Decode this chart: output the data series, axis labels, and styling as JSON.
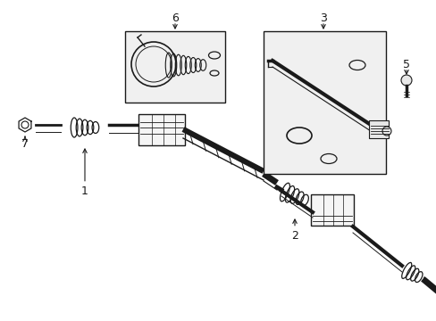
{
  "bg_color": "#ffffff",
  "line_color": "#1a1a1a",
  "box_fill": "#f0f0f0",
  "figsize": [
    4.89,
    3.6
  ],
  "dpi": 100,
  "xlim": [
    0,
    489
  ],
  "ylim": [
    0,
    360
  ]
}
